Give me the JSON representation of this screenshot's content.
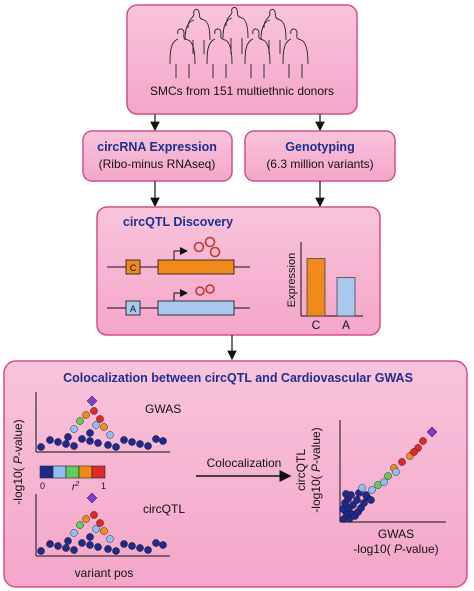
{
  "donors_box": {
    "label": "SMCs from 151 multiethnic donors"
  },
  "expression_box": {
    "title": "circRNA Expression",
    "subtitle": "(Ribo-minus RNAseq)"
  },
  "genotyping_box": {
    "title": "Genotyping",
    "subtitle": "(6.3 million variants)"
  },
  "discovery_box": {
    "title": "circQTL Discovery",
    "allele_c": "C",
    "allele_a": "A",
    "bar_chart": {
      "ylabel": "Expression",
      "categories": [
        "C",
        "A"
      ],
      "values": [
        0.82,
        0.55
      ],
      "colors": [
        "#f08a1c",
        "#a9c8ee"
      ]
    }
  },
  "coloc_box": {
    "title": "Colocalization between circQTL and Cardiovascular GWAS",
    "y_label_prefix": "-log10( ",
    "y_label_italic": "P",
    "y_label_suffix": "-value)",
    "gwas_label": "GWAS",
    "circqtl_label": "circQTL",
    "x_label": "variant pos",
    "legend": {
      "min": "0",
      "label": "r",
      "sup": "2",
      "max": "1",
      "colors": [
        "#1f2a8c",
        "#8fbef0",
        "#62cc5a",
        "#f08a1c",
        "#e02a2a"
      ]
    },
    "arrow_label": "Colocalization",
    "scatter_ylabel_line1": "circQTL",
    "scatter_xlabel_line1": "GWAS"
  },
  "colors": {
    "box_fill": "#f7b6d4",
    "box_stroke": "#d24f8e",
    "title_blue": "#1f2f8c"
  }
}
